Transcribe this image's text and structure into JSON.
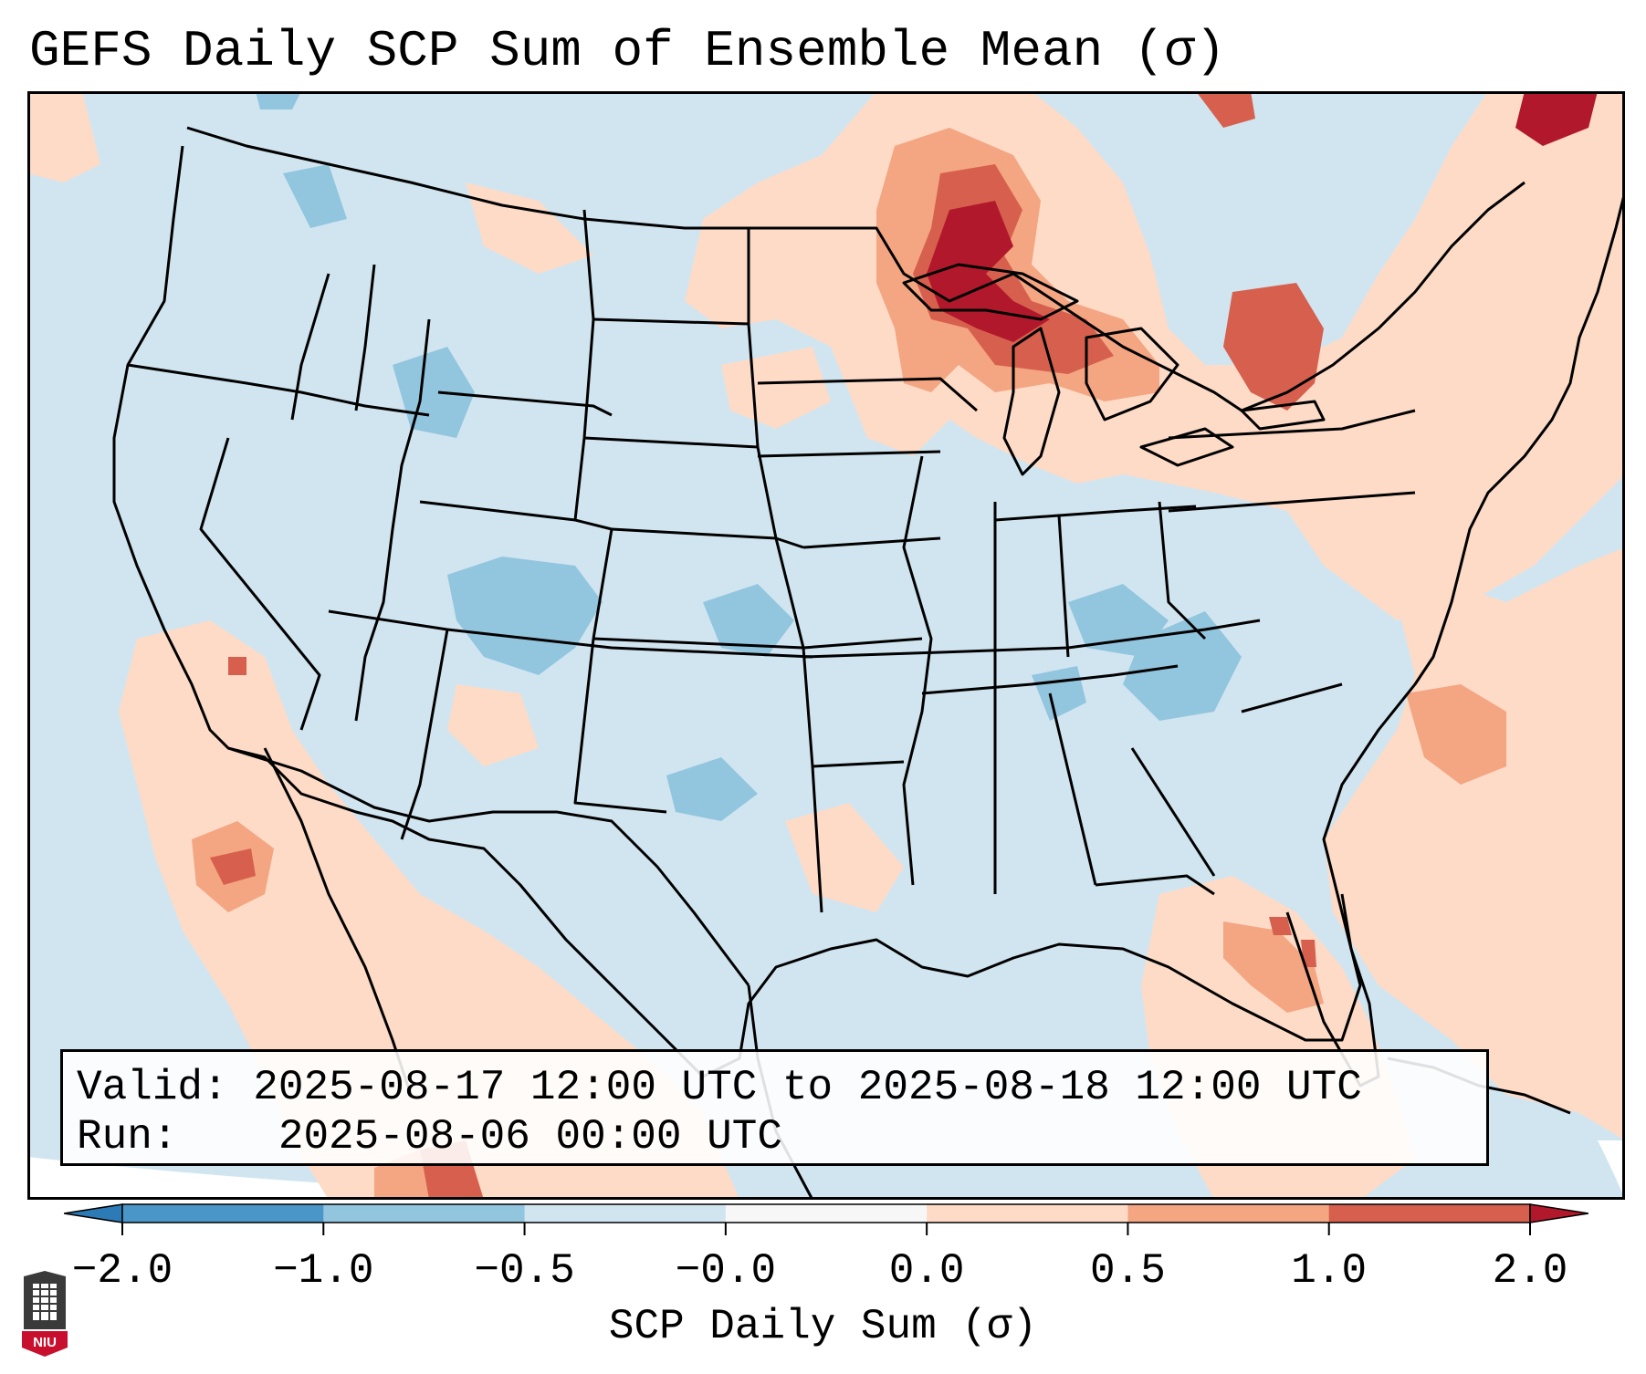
{
  "title": "GEFS Daily SCP Sum of Ensemble Mean (σ)",
  "info": {
    "valid_label": "Valid:",
    "valid_value": "2025-08-17 12:00 UTC to 2025-08-18 12:00 UTC",
    "run_label": "Run:",
    "run_value": "2025-08-06 00:00 UTC"
  },
  "colorbar": {
    "label": "SCP Daily Sum (σ)",
    "ticks": [
      "−2.0",
      "−1.0",
      "−0.5",
      "−0.0",
      "0.0",
      "0.5",
      "1.0",
      "2.0"
    ],
    "colors": [
      "#2c7bb6",
      "#4a96c9",
      "#92c5de",
      "#d1e5f0",
      "#f7f7f7",
      "#fddbc7",
      "#f4a582",
      "#d6604d",
      "#b2182b"
    ]
  },
  "map_colors": {
    "ocean_bg": "#d1e5f0",
    "outside": "#ffffff",
    "weak_pos": "#fddbc7",
    "mod_pos": "#f4a582",
    "strong_pos": "#d6604d",
    "very_strong_pos": "#b2182b",
    "weak_neg": "#92c5de"
  },
  "logo": {
    "text": "NIU"
  }
}
